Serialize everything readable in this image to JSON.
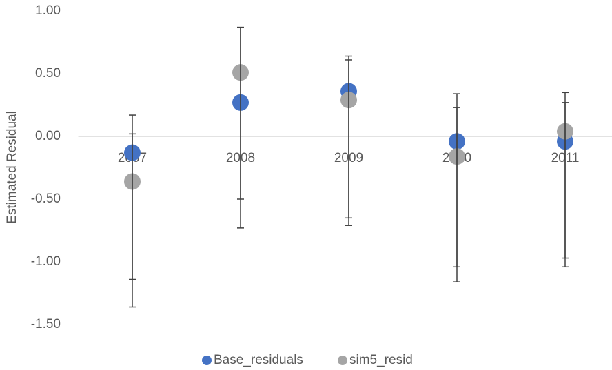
{
  "chart_data": {
    "type": "scatter",
    "y_label": "Estimated Residual",
    "categories": [
      "2007",
      "2008",
      "2009",
      "2010",
      "2011"
    ],
    "series": [
      {
        "name": "Base_residuals",
        "color": "#4472c4",
        "values": [
          -0.13,
          0.27,
          0.36,
          -0.04,
          -0.04
        ],
        "error_low": [
          -1.14,
          -0.5,
          -0.65,
          -1.04,
          -0.97
        ],
        "error_high": [
          0.17,
          0.87,
          0.64,
          0.34,
          0.27
        ]
      },
      {
        "name": "sim5_resid",
        "color": "#a5a5a5",
        "values": [
          -0.36,
          0.51,
          0.29,
          -0.16,
          0.04
        ],
        "error_low": [
          -1.36,
          -0.73,
          -0.71,
          -1.16,
          -1.04
        ],
        "error_high": [
          0.02,
          0.87,
          0.61,
          0.23,
          0.35
        ]
      }
    ],
    "ylim": [
      -1.5,
      1.0
    ],
    "yticks": [
      {
        "value": -1.5,
        "label": "-1.50"
      },
      {
        "value": -1,
        "label": "-1.00"
      },
      {
        "value": -0.5,
        "label": "-0.50"
      },
      {
        "value": 0,
        "label": "0.00"
      },
      {
        "value": 0.5,
        "label": "0.50"
      },
      {
        "value": 1,
        "label": "1.00"
      }
    ],
    "legend": "bottom"
  }
}
